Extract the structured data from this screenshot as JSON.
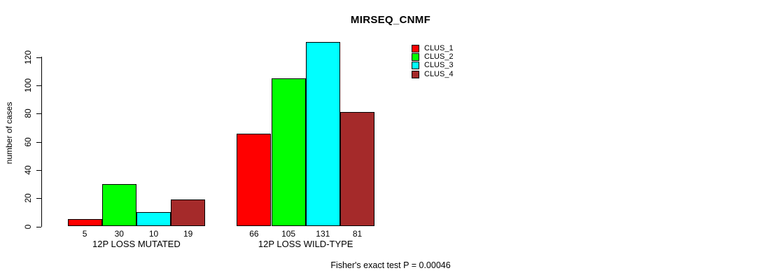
{
  "chart_data": {
    "type": "bar",
    "title": "MIRSEQ_CNMF",
    "ylabel": "number of cases",
    "xlabel": "",
    "ylim": [
      0,
      131
    ],
    "yticks": [
      0,
      20,
      40,
      60,
      80,
      100,
      120
    ],
    "grid": false,
    "legend_position": "top-right-inside",
    "categories": [
      "12P LOSS MUTATED",
      "12P LOSS WILD-TYPE"
    ],
    "series": [
      {
        "name": "CLUS_1",
        "color": "#FF0000",
        "values": [
          5,
          66
        ]
      },
      {
        "name": "CLUS_2",
        "color": "#00FF00",
        "values": [
          30,
          105
        ]
      },
      {
        "name": "CLUS_3",
        "color": "#00FFFF",
        "values": [
          10,
          131
        ]
      },
      {
        "name": "CLUS_4",
        "color": "#A52A2A",
        "values": [
          19,
          81
        ]
      }
    ],
    "bar_value_labels": true,
    "annotation": "Fisher's exact test P = 0.00046"
  },
  "colors": {
    "background": "#FFFFFF",
    "axis": "#000000",
    "text": "#000000"
  }
}
